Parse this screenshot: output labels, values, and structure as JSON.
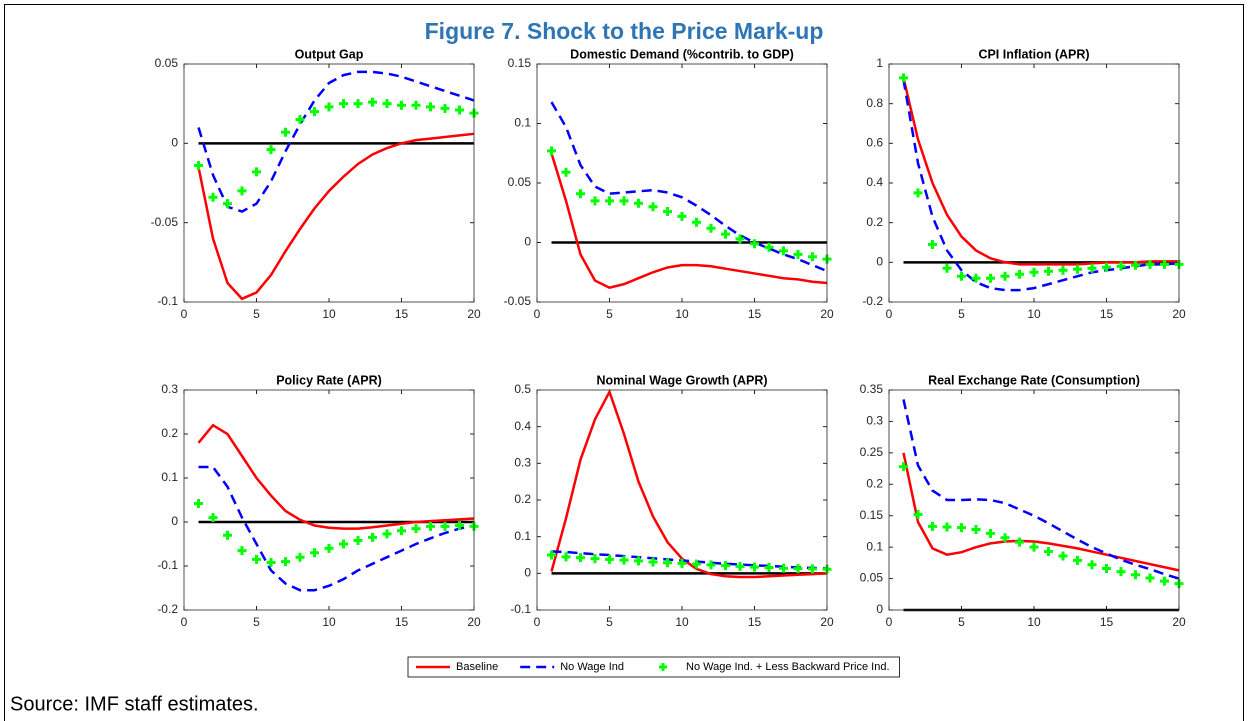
{
  "title": "Figure 7. Shock to the Price Mark-up",
  "source": "Source: IMF staff estimates.",
  "legend": [
    {
      "name": "Baseline",
      "color": "#ff0000",
      "style": "solid"
    },
    {
      "name": "No Wage Ind",
      "color": "#0000ff",
      "style": "dashed"
    },
    {
      "name": "No Wage Ind. + Less Backward Price Ind.",
      "color": "#00ff00",
      "style": "plus"
    }
  ],
  "chart_data": [
    {
      "type": "line",
      "title": "Output Gap",
      "x": [
        1,
        2,
        3,
        4,
        5,
        6,
        7,
        8,
        9,
        10,
        11,
        12,
        13,
        14,
        15,
        16,
        17,
        18,
        19,
        20
      ],
      "xlim": [
        0,
        20
      ],
      "xticks": [
        0,
        5,
        10,
        15,
        20
      ],
      "ylim": [
        -0.1,
        0.05
      ],
      "yticks": [
        -0.1,
        -0.05,
        0,
        0.05
      ],
      "reference_line": 0,
      "series": [
        {
          "values": [
            -0.015,
            -0.06,
            -0.088,
            -0.098,
            -0.094,
            -0.083,
            -0.068,
            -0.054,
            -0.041,
            -0.03,
            -0.021,
            -0.013,
            -0.007,
            -0.003,
            0.0,
            0.002,
            0.003,
            0.004,
            0.005,
            0.006
          ]
        },
        {
          "values": [
            0.01,
            -0.02,
            -0.04,
            -0.043,
            -0.038,
            -0.024,
            -0.005,
            0.012,
            0.027,
            0.038,
            0.043,
            0.045,
            0.045,
            0.044,
            0.042,
            0.039,
            0.036,
            0.033,
            0.03,
            0.027
          ]
        },
        {
          "values": [
            -0.014,
            -0.034,
            -0.038,
            -0.03,
            -0.018,
            -0.004,
            0.007,
            0.015,
            0.02,
            0.023,
            0.025,
            0.025,
            0.026,
            0.025,
            0.024,
            0.024,
            0.023,
            0.022,
            0.021,
            0.019
          ]
        }
      ]
    },
    {
      "type": "line",
      "title": "Domestic Demand (%contrib. to GDP)",
      "x": [
        1,
        2,
        3,
        4,
        5,
        6,
        7,
        8,
        9,
        10,
        11,
        12,
        13,
        14,
        15,
        16,
        17,
        18,
        19,
        20
      ],
      "xlim": [
        0,
        20
      ],
      "xticks": [
        0,
        5,
        10,
        15,
        20
      ],
      "ylim": [
        -0.05,
        0.15
      ],
      "yticks": [
        -0.05,
        0,
        0.05,
        0.1,
        0.15
      ],
      "reference_line": 0,
      "series": [
        {
          "values": [
            0.075,
            0.035,
            -0.01,
            -0.032,
            -0.038,
            -0.035,
            -0.03,
            -0.025,
            -0.021,
            -0.019,
            -0.019,
            -0.02,
            -0.022,
            -0.024,
            -0.026,
            -0.028,
            -0.03,
            -0.031,
            -0.033,
            -0.034
          ]
        },
        {
          "values": [
            0.118,
            0.097,
            0.065,
            0.047,
            0.041,
            0.042,
            0.043,
            0.044,
            0.042,
            0.038,
            0.031,
            0.023,
            0.014,
            0.006,
            0.0,
            -0.005,
            -0.01,
            -0.014,
            -0.019,
            -0.024
          ]
        },
        {
          "values": [
            0.077,
            0.059,
            0.041,
            0.035,
            0.035,
            0.035,
            0.033,
            0.03,
            0.026,
            0.022,
            0.017,
            0.012,
            0.007,
            0.003,
            -0.001,
            -0.004,
            -0.007,
            -0.01,
            -0.012,
            -0.014
          ]
        }
      ]
    },
    {
      "type": "line",
      "title": "CPI Inflation (APR)",
      "x": [
        1,
        2,
        3,
        4,
        5,
        6,
        7,
        8,
        9,
        10,
        11,
        12,
        13,
        14,
        15,
        16,
        17,
        18,
        19,
        20
      ],
      "xlim": [
        0,
        20
      ],
      "xticks": [
        0,
        5,
        10,
        15,
        20
      ],
      "ylim": [
        -0.2,
        1
      ],
      "yticks": [
        -0.2,
        0,
        0.2,
        0.4,
        0.6,
        0.8,
        1
      ],
      "reference_line": 0,
      "series": [
        {
          "values": [
            0.93,
            0.62,
            0.4,
            0.24,
            0.13,
            0.06,
            0.02,
            0.0,
            -0.01,
            -0.01,
            -0.01,
            -0.01,
            -0.01,
            -0.005,
            0.0,
            0.0,
            0.0,
            0.005,
            0.005,
            0.005
          ]
        },
        {
          "values": [
            0.92,
            0.5,
            0.23,
            0.06,
            -0.04,
            -0.1,
            -0.13,
            -0.14,
            -0.14,
            -0.13,
            -0.11,
            -0.09,
            -0.07,
            -0.05,
            -0.04,
            -0.03,
            -0.02,
            -0.01,
            -0.01,
            -0.005
          ]
        },
        {
          "values": [
            0.93,
            0.35,
            0.09,
            -0.03,
            -0.07,
            -0.08,
            -0.08,
            -0.07,
            -0.06,
            -0.05,
            -0.045,
            -0.04,
            -0.035,
            -0.03,
            -0.025,
            -0.02,
            -0.015,
            -0.01,
            -0.01,
            -0.01
          ]
        }
      ]
    },
    {
      "type": "line",
      "title": "Policy Rate (APR)",
      "x": [
        1,
        2,
        3,
        4,
        5,
        6,
        7,
        8,
        9,
        10,
        11,
        12,
        13,
        14,
        15,
        16,
        17,
        18,
        19,
        20
      ],
      "xlim": [
        0,
        20
      ],
      "xticks": [
        0,
        5,
        10,
        15,
        20
      ],
      "ylim": [
        -0.2,
        0.3
      ],
      "yticks": [
        -0.2,
        -0.1,
        0,
        0.1,
        0.2,
        0.3
      ],
      "reference_line": 0,
      "series": [
        {
          "values": [
            0.18,
            0.22,
            0.2,
            0.15,
            0.1,
            0.06,
            0.025,
            0.005,
            -0.008,
            -0.013,
            -0.015,
            -0.015,
            -0.012,
            -0.008,
            -0.004,
            0.0,
            0.002,
            0.004,
            0.006,
            0.008
          ]
        },
        {
          "values": [
            0.125,
            0.125,
            0.08,
            0.01,
            -0.05,
            -0.11,
            -0.14,
            -0.155,
            -0.155,
            -0.145,
            -0.13,
            -0.11,
            -0.095,
            -0.08,
            -0.065,
            -0.05,
            -0.037,
            -0.025,
            -0.015,
            -0.008
          ]
        },
        {
          "values": [
            0.042,
            0.01,
            -0.03,
            -0.065,
            -0.085,
            -0.092,
            -0.09,
            -0.08,
            -0.07,
            -0.06,
            -0.05,
            -0.042,
            -0.035,
            -0.027,
            -0.02,
            -0.015,
            -0.01,
            -0.01,
            -0.008,
            -0.01
          ]
        }
      ]
    },
    {
      "type": "line",
      "title": "Nominal Wage Growth (APR)",
      "x": [
        1,
        2,
        3,
        4,
        5,
        6,
        7,
        8,
        9,
        10,
        11,
        12,
        13,
        14,
        15,
        16,
        17,
        18,
        19,
        20
      ],
      "xlim": [
        0,
        20
      ],
      "xticks": [
        0,
        5,
        10,
        15,
        20
      ],
      "ylim": [
        -0.1,
        0.5
      ],
      "yticks": [
        -0.1,
        0,
        0.1,
        0.2,
        0.3,
        0.4,
        0.5
      ],
      "reference_line": 0,
      "series": [
        {
          "values": [
            0.005,
            0.15,
            0.31,
            0.42,
            0.495,
            0.38,
            0.25,
            0.155,
            0.085,
            0.04,
            0.012,
            -0.002,
            -0.008,
            -0.01,
            -0.01,
            -0.008,
            -0.006,
            -0.004,
            -0.002,
            0.0
          ]
        },
        {
          "values": [
            0.06,
            0.058,
            0.055,
            0.052,
            0.05,
            0.047,
            0.044,
            0.041,
            0.038,
            0.035,
            0.032,
            0.029,
            0.026,
            0.024,
            0.022,
            0.02,
            0.018,
            0.016,
            0.015,
            0.013
          ]
        },
        {
          "values": [
            0.05,
            0.045,
            0.043,
            0.04,
            0.038,
            0.036,
            0.034,
            0.031,
            0.029,
            0.027,
            0.025,
            0.023,
            0.021,
            0.019,
            0.017,
            0.016,
            0.014,
            0.013,
            0.012,
            0.011
          ]
        }
      ]
    },
    {
      "type": "line",
      "title": "Real Exchange Rate (Consumption)",
      "x": [
        1,
        2,
        3,
        4,
        5,
        6,
        7,
        8,
        9,
        10,
        11,
        12,
        13,
        14,
        15,
        16,
        17,
        18,
        19,
        20
      ],
      "xlim": [
        0,
        20
      ],
      "xticks": [
        0,
        5,
        10,
        15,
        20
      ],
      "ylim": [
        0,
        0.35
      ],
      "yticks": [
        0,
        0.05,
        0.1,
        0.15,
        0.2,
        0.25,
        0.3,
        0.35
      ],
      "reference_line": 0,
      "series": [
        {
          "values": [
            0.25,
            0.14,
            0.098,
            0.088,
            0.092,
            0.1,
            0.106,
            0.109,
            0.11,
            0.109,
            0.106,
            0.102,
            0.098,
            0.093,
            0.088,
            0.083,
            0.078,
            0.073,
            0.068,
            0.063
          ]
        },
        {
          "values": [
            0.335,
            0.23,
            0.19,
            0.175,
            0.175,
            0.176,
            0.175,
            0.17,
            0.16,
            0.15,
            0.138,
            0.125,
            0.112,
            0.1,
            0.09,
            0.08,
            0.072,
            0.065,
            0.057,
            0.05
          ]
        },
        {
          "values": [
            0.228,
            0.152,
            0.133,
            0.132,
            0.131,
            0.128,
            0.122,
            0.115,
            0.108,
            0.1,
            0.093,
            0.086,
            0.079,
            0.072,
            0.066,
            0.061,
            0.056,
            0.051,
            0.046,
            0.042
          ]
        }
      ]
    }
  ]
}
